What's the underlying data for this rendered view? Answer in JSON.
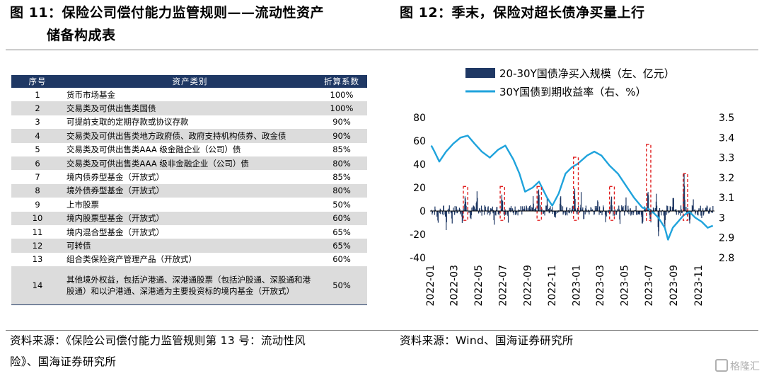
{
  "left_figure": {
    "title_line1": "图 11：保险公司偿付能力监管规则——流动性资产",
    "title_line2": "储备构成表",
    "table": {
      "headers": [
        "序号",
        "资产类别",
        "折算系数"
      ],
      "rows": [
        [
          "1",
          "货币市场基金",
          "100%"
        ],
        [
          "2",
          "交易类及可供出售类国债",
          "100%"
        ],
        [
          "3",
          "可提前支取的定期存款或协议存款",
          "90%"
        ],
        [
          "4",
          "交易类及可供出售类地方政府债、政府支持机构债券、政金债",
          "90%"
        ],
        [
          "5",
          "交易类及可供出售类AAA 级金融企业（公司）债",
          "85%"
        ],
        [
          "6",
          "交易类及可供出售类AAA 级非金融企业（公司）债",
          "80%"
        ],
        [
          "7",
          "境内债券型基金（开放式）",
          "85%"
        ],
        [
          "8",
          "境外债券型基金（开放式）",
          "80%"
        ],
        [
          "9",
          "上市股票",
          "50%"
        ],
        [
          "10",
          "境内股票型基金（开放式）",
          "60%"
        ],
        [
          "11",
          "境内混合型基金（开放式）",
          "65%"
        ],
        [
          "12",
          "可转债",
          "65%"
        ],
        [
          "13",
          "组合类保险资产管理产品（开放式）",
          "60%"
        ],
        [
          "14",
          "其他境外权益，包括沪港通、深港通股票（包括沪股通、深股通和港股通）和以沪港通、深港通为主要投资标的境内基金（开放式）",
          "50%"
        ]
      ]
    },
    "source_line1": "资料来源：《保险公司偿付能力监管规则第 13 号：流动性风",
    "source_line2": "险》、国海证券研究所"
  },
  "right_figure": {
    "title": "图 12：季末，保险对超长债净买量上行",
    "source": "资料来源：Wind、国海证券研究所"
  },
  "watermark": "格隆汇",
  "chart_data": {
    "type": "bar+line",
    "series": [
      {
        "name": "20-30Y国债净买入规模（左、亿元）",
        "type": "bar",
        "axis": "left",
        "color": "#1f3864",
        "x_start": "2022-01-04",
        "x_end": "2023-12-08",
        "spike_events": [
          [
            "2022-03-30",
            12
          ],
          [
            "2022-04-28",
            18
          ],
          [
            "2022-06-29",
            16
          ],
          [
            "2022-09-15",
            8
          ],
          [
            "2022-09-29",
            22
          ],
          [
            "2022-10-20",
            12
          ],
          [
            "2022-11-22",
            15
          ],
          [
            "2022-12-28",
            16
          ],
          [
            "2023-01-13",
            12
          ],
          [
            "2023-02-24",
            8
          ],
          [
            "2023-03-30",
            12
          ],
          [
            "2023-05-05",
            10
          ],
          [
            "2023-06-29",
            18
          ],
          [
            "2023-07-20",
            12
          ],
          [
            "2023-08-31",
            12
          ],
          [
            "2023-09-27",
            30
          ],
          [
            "2023-10-20",
            12
          ]
        ],
        "dip_events": [
          [
            "2022-01-20",
            -10
          ],
          [
            "2022-02-10",
            -14
          ],
          [
            "2022-02-25",
            -8
          ],
          [
            "2022-03-22",
            -7
          ],
          [
            "2022-04-12",
            -6
          ],
          [
            "2022-06-10",
            -8
          ],
          [
            "2022-07-15",
            -6
          ],
          [
            "2022-11-08",
            -7
          ],
          [
            "2023-01-20",
            -8
          ],
          [
            "2023-03-15",
            -6
          ],
          [
            "2023-04-20",
            -7
          ],
          [
            "2023-06-15",
            -14
          ],
          [
            "2023-07-05",
            -10
          ],
          [
            "2023-07-25",
            -20
          ],
          [
            "2023-08-10",
            -16
          ],
          [
            "2023-10-10",
            -10
          ],
          [
            "2023-11-10",
            -8
          ]
        ]
      },
      {
        "name": "30Y国债到期收益率（右、%）",
        "type": "line",
        "axis": "right",
        "color": "#1fa3dc",
        "points": [
          [
            "2022-01-04",
            3.36
          ],
          [
            "2022-01-12",
            3.33
          ],
          [
            "2022-01-24",
            3.28
          ],
          [
            "2022-02-10",
            3.33
          ],
          [
            "2022-02-28",
            3.37
          ],
          [
            "2022-03-18",
            3.4
          ],
          [
            "2022-04-05",
            3.41
          ],
          [
            "2022-04-22",
            3.37
          ],
          [
            "2022-05-10",
            3.33
          ],
          [
            "2022-05-30",
            3.3
          ],
          [
            "2022-06-20",
            3.34
          ],
          [
            "2022-07-08",
            3.36
          ],
          [
            "2022-07-28",
            3.29
          ],
          [
            "2022-08-12",
            3.22
          ],
          [
            "2022-08-26",
            3.13
          ],
          [
            "2022-09-14",
            3.15
          ],
          [
            "2022-09-30",
            3.18
          ],
          [
            "2022-10-20",
            3.1
          ],
          [
            "2022-11-02",
            3.06
          ],
          [
            "2022-11-18",
            3.12
          ],
          [
            "2022-12-05",
            3.22
          ],
          [
            "2022-12-20",
            3.25
          ],
          [
            "2023-01-05",
            3.27
          ],
          [
            "2023-01-28",
            3.31
          ],
          [
            "2023-02-15",
            3.33
          ],
          [
            "2023-03-05",
            3.31
          ],
          [
            "2023-03-25",
            3.26
          ],
          [
            "2023-04-15",
            3.22
          ],
          [
            "2023-05-05",
            3.16
          ],
          [
            "2023-05-25",
            3.1
          ],
          [
            "2023-06-15",
            3.05
          ],
          [
            "2023-07-05",
            3.04
          ],
          [
            "2023-07-25",
            3.0
          ],
          [
            "2023-08-10",
            2.95
          ],
          [
            "2023-08-18",
            2.89
          ],
          [
            "2023-08-30",
            2.95
          ],
          [
            "2023-09-12",
            2.98
          ],
          [
            "2023-09-25",
            3.01
          ],
          [
            "2023-10-10",
            3.03
          ],
          [
            "2023-10-25",
            3.0
          ],
          [
            "2023-11-10",
            2.98
          ],
          [
            "2023-11-25",
            2.95
          ],
          [
            "2023-12-08",
            2.96
          ]
        ]
      }
    ],
    "highlight_boxes": [
      {
        "from": "2022-03-25",
        "to": "2022-04-05",
        "y_top": 21,
        "y_bottom": -8
      },
      {
        "from": "2022-06-25",
        "to": "2022-07-06",
        "y_top": 21,
        "y_bottom": -8
      },
      {
        "from": "2022-09-25",
        "to": "2022-10-06",
        "y_top": 21,
        "y_bottom": -8
      },
      {
        "from": "2022-12-25",
        "to": "2023-01-06",
        "y_top": 46,
        "y_bottom": -8
      },
      {
        "from": "2023-03-25",
        "to": "2023-04-06",
        "y_top": 21,
        "y_bottom": -8
      },
      {
        "from": "2023-06-25",
        "to": "2023-07-06",
        "y_top": 57,
        "y_bottom": -8
      },
      {
        "from": "2023-09-25",
        "to": "2023-10-06",
        "y_top": 32,
        "y_bottom": -8
      }
    ],
    "x_ticks": [
      "2022-01",
      "2022-03",
      "2022-05",
      "2022-07",
      "2022-09",
      "2022-11",
      "2023-01",
      "2023-03",
      "2023-05",
      "2023-07",
      "2023-09",
      "2023-11"
    ],
    "y_left": {
      "min": -40,
      "max": 80,
      "ticks": [
        -40,
        -20,
        0,
        20,
        40,
        60,
        80
      ]
    },
    "y_right": {
      "min": 2.8,
      "max": 3.5,
      "ticks": [
        2.8,
        2.9,
        3.0,
        3.1,
        3.2,
        3.3,
        3.4,
        3.5
      ],
      "tick_labels": [
        "2.8",
        "2.9",
        "3",
        "3.1",
        "3.2",
        "3.3",
        "3.4",
        "3.5"
      ]
    },
    "grid": false,
    "legend_position": "top"
  }
}
